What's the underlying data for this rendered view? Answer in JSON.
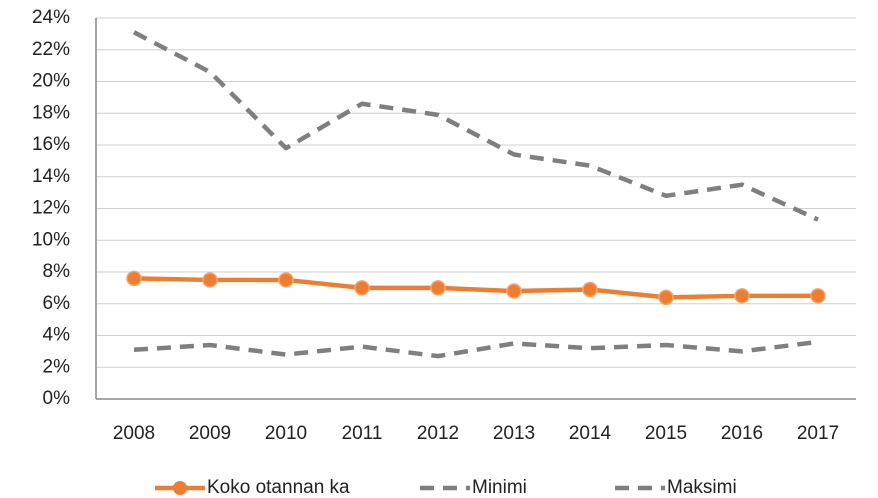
{
  "chart_data": {
    "type": "line",
    "categories": [
      "2008",
      "2009",
      "2010",
      "2011",
      "2012",
      "2013",
      "2014",
      "2015",
      "2016",
      "2017"
    ],
    "series": [
      {
        "name": "Koko otannan ka",
        "color": "#ed7d31",
        "line_style": "solid",
        "marker": "circle",
        "values": [
          7.6,
          7.5,
          7.5,
          7.0,
          7.0,
          6.8,
          6.9,
          6.4,
          6.5,
          6.5
        ]
      },
      {
        "name": "Minimi",
        "color": "#7f7f7f",
        "line_style": "dashed",
        "marker": "none",
        "values": [
          3.1,
          3.4,
          2.8,
          3.3,
          2.7,
          3.5,
          3.2,
          3.4,
          3.0,
          3.6
        ]
      },
      {
        "name": "Maksimi",
        "color": "#7f7f7f",
        "line_style": "dashed",
        "marker": "none",
        "values": [
          23.1,
          20.6,
          15.8,
          18.6,
          17.9,
          15.4,
          14.7,
          12.8,
          13.5,
          11.3
        ]
      }
    ],
    "ylim": [
      0,
      24
    ],
    "yticks": [
      {
        "value": 0,
        "label": "0%"
      },
      {
        "value": 2,
        "label": "2%"
      },
      {
        "value": 4,
        "label": "4%"
      },
      {
        "value": 6,
        "label": "6%"
      },
      {
        "value": 8,
        "label": "8%"
      },
      {
        "value": 10,
        "label": "10%"
      },
      {
        "value": 12,
        "label": "12%"
      },
      {
        "value": 14,
        "label": "14%"
      },
      {
        "value": 16,
        "label": "16%"
      },
      {
        "value": 18,
        "label": "18%"
      },
      {
        "value": 20,
        "label": "20%"
      },
      {
        "value": 22,
        "label": "22%"
      },
      {
        "value": 24,
        "label": "24%"
      }
    ],
    "grid": true,
    "legend": "bottom"
  }
}
